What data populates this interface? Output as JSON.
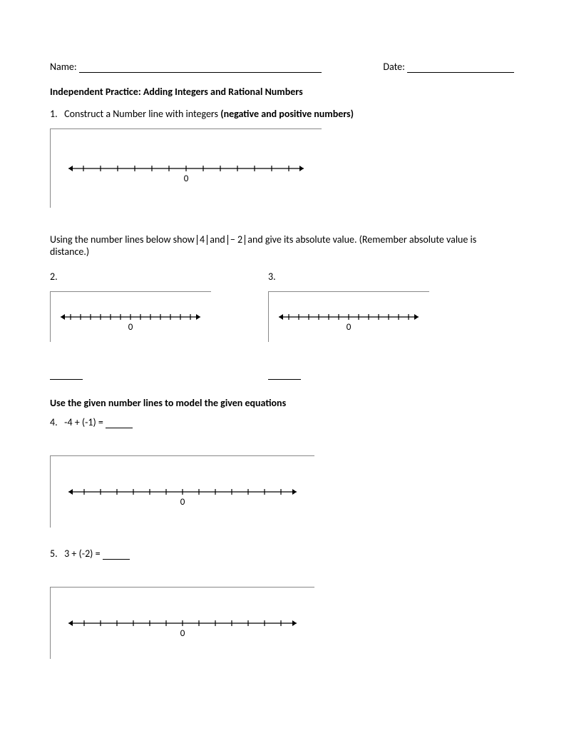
{
  "header": {
    "name_label": "Name:",
    "name_line_width": 340,
    "date_label": "Date:",
    "date_line_width": 150
  },
  "title": "Independent Practice: Adding Integers and Rational Numbers",
  "q1": {
    "num": "1.",
    "text1": "Construct a Number line with integers ",
    "text2": "(negative and positive numbers)"
  },
  "instr2": {
    "text_a": "Using the number lines below show ",
    "abs1": "4",
    "text_b": " and ",
    "abs2": "− 2",
    "text_c": " and give its absolute value. (Remember absolute value is distance.)"
  },
  "q2": {
    "num": "2."
  },
  "q3": {
    "num": "3."
  },
  "instr3": "Use the given number lines to model the given equations",
  "q4": {
    "num": "4.",
    "expr": "-4 + (-1) = "
  },
  "q5": {
    "num": "5.",
    "expr": "3 + (-2) = "
  },
  "numberline": {
    "zero_label": "0",
    "line_color": "#000000",
    "tick_color": "#000000",
    "arrow_color": "#000000",
    "label_fontsize": 13,
    "ticks_each_side": 6,
    "line_stroke": 1.2,
    "tick_stroke": 1.2,
    "tick_height": 8
  },
  "colors": {
    "page_bg": "#ffffff",
    "frame_border": "#888888",
    "text": "#000000"
  }
}
